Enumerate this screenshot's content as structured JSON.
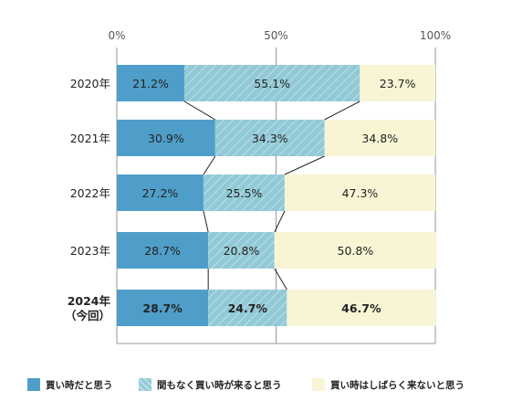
{
  "chart_data": {
    "type": "bar",
    "orientation": "horizontal",
    "stacked": true,
    "x_ticks": [
      "0%",
      "50%",
      "100%"
    ],
    "xlim": [
      0,
      100
    ],
    "categories": [
      "2020年",
      "2021年",
      "2022年",
      "2023年",
      "2024年\n（今回）"
    ],
    "series": [
      {
        "name": "買い時だと思う",
        "color": "#4f9ec9",
        "pattern": "solid",
        "values": [
          21.2,
          30.9,
          27.2,
          28.7,
          28.7
        ],
        "labels": [
          "21.2%",
          "30.9%",
          "27.2%",
          "28.7%",
          "28.7%"
        ]
      },
      {
        "name": "間もなく買い時が来ると思う",
        "color": "#92c9d6",
        "pattern": "diagonal-hatch",
        "values": [
          55.1,
          34.3,
          25.5,
          20.8,
          24.7
        ],
        "labels": [
          "55.1%",
          "34.3%",
          "25.5%",
          "20.8%",
          "24.7%"
        ]
      },
      {
        "name": "買い時はしばらく来ないと思う",
        "color": "#f8f5d5",
        "pattern": "solid",
        "values": [
          23.7,
          34.8,
          47.3,
          50.8,
          46.7
        ],
        "labels": [
          "23.7%",
          "34.8%",
          "47.3%",
          "50.8%",
          "46.7%"
        ]
      }
    ],
    "highlight_category_index": 4,
    "grid": true,
    "connector_lines": true,
    "legend_position": "bottom"
  }
}
